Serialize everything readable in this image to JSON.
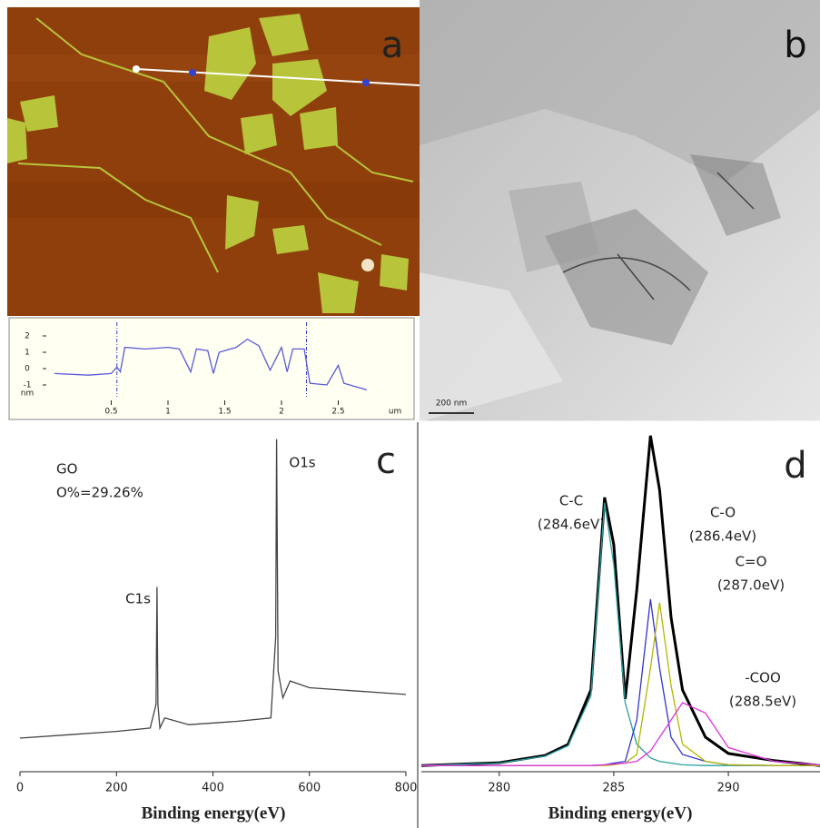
{
  "panel_labels": [
    "a",
    "b",
    "c",
    "d"
  ],
  "scale_bar": "200 nm",
  "chart_data": [
    {
      "type": "line",
      "x_label": "um",
      "y_label": "nm",
      "color": "#5a5ad8",
      "x": [
        0,
        0.3,
        0.5,
        0.55,
        0.58,
        0.62,
        0.8,
        1.0,
        1.1,
        1.2,
        1.25,
        1.35,
        1.4,
        1.45,
        1.6,
        1.7,
        1.8,
        1.9,
        2.0,
        2.05,
        2.1,
        2.2,
        2.25,
        2.4,
        2.5,
        2.55,
        2.75
      ],
      "values": [
        -0.3,
        -0.4,
        -0.3,
        0.1,
        -0.2,
        1.3,
        1.2,
        1.3,
        1.2,
        -0.2,
        1.2,
        1.1,
        -0.3,
        1.0,
        1.3,
        1.8,
        1.4,
        -0.1,
        1.3,
        -0.2,
        1.2,
        1.2,
        -0.9,
        -1.0,
        0.2,
        -0.9,
        -1.3
      ],
      "cursor_x": [
        0.55,
        2.22
      ],
      "xlim": [
        0,
        3.0
      ],
      "ylim": [
        -1.5,
        2.5
      ],
      "xticks": [
        0.5,
        1,
        1.5,
        2,
        2.5
      ],
      "yticks": [
        -1,
        0,
        1,
        2
      ]
    },
    {
      "type": "line",
      "x_label": "Binding energy(eV)",
      "color": "#444444",
      "annotations": [
        "GO",
        "O%=29.26%",
        "C1s",
        "O1s"
      ],
      "x": [
        0,
        100,
        200,
        270,
        282,
        284,
        286,
        290,
        300,
        350,
        450,
        520,
        530,
        532,
        535,
        545,
        560,
        600,
        700,
        800
      ],
      "values": [
        10,
        11,
        12,
        13,
        20,
        55,
        20,
        13,
        16,
        14,
        15,
        16,
        40,
        99,
        30,
        22,
        27,
        25,
        24,
        23
      ],
      "xlim": [
        0,
        800
      ],
      "ylim": [
        0,
        100
      ],
      "xticks": [
        0,
        200,
        400,
        600,
        800
      ]
    },
    {
      "type": "line",
      "x_label": "Binding energy(eV)",
      "annotations": [
        "(284.6eV)",
        "(286.4eV)",
        "(287.0eV)",
        "(288.5eV)"
      ],
      "x": [
        276.6,
        280,
        282,
        283,
        284,
        284.6,
        285,
        285.5,
        286,
        286.6,
        287,
        287.5,
        288,
        289,
        290,
        292,
        294
      ],
      "series": [
        {
          "color": "#000000",
          "values": [
            1.8,
            2.6,
            4.7,
            7.9,
            23.7,
            79.5,
            65.8,
            21.1,
            52.6,
            97.4,
            81.6,
            44.7,
            23.7,
            10,
            5.3,
            3.2,
            1.8
          ]
        },
        {
          "name": "C-C",
          "color": "#2a9d9d",
          "values": [
            1.8,
            2.5,
            4.5,
            7.5,
            22,
            78,
            60,
            20,
            8,
            4,
            3,
            2.5,
            2,
            1.8,
            1.8,
            1.8,
            1.8
          ]
        },
        {
          "name": "C-O",
          "color": "#3333cc",
          "values": [
            1.8,
            1.8,
            1.8,
            1.8,
            1.8,
            2,
            2.5,
            3,
            15,
            50,
            30,
            10,
            5,
            3,
            2,
            1.8,
            1.8
          ]
        },
        {
          "name": "C=O",
          "color": "#b5b500",
          "values": [
            1.8,
            1.8,
            1.8,
            1.8,
            1.8,
            1.8,
            2,
            2.5,
            5,
            30,
            49,
            25,
            8,
            3,
            2,
            1.8,
            1.8
          ]
        },
        {
          "name": "-COO",
          "color": "#dd33dd",
          "values": [
            1.8,
            1.8,
            1.8,
            1.8,
            1.8,
            2,
            2.2,
            2.5,
            3,
            6,
            10,
            15,
            20,
            17,
            7,
            3,
            2
          ]
        }
      ],
      "xlim": [
        276.6,
        294
      ],
      "ylim": [
        0,
        100
      ],
      "xticks": [
        280,
        285,
        290
      ]
    }
  ]
}
